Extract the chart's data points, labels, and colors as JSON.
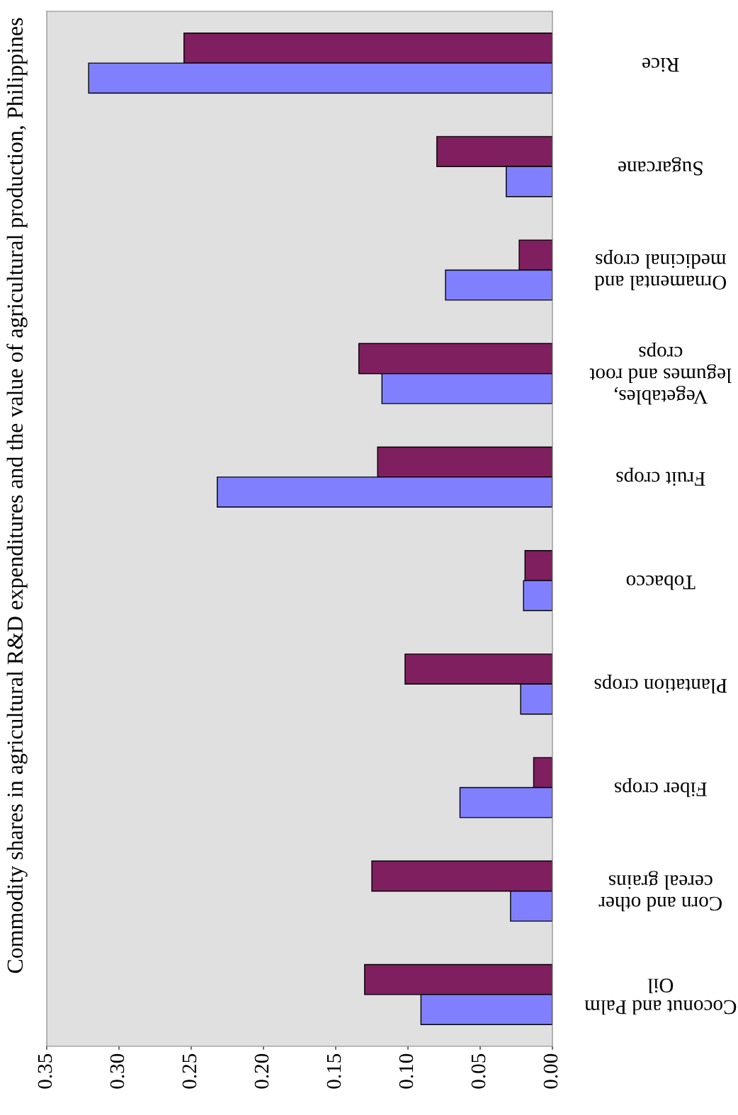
{
  "chart_data": {
    "type": "bar",
    "orientation": "horizontal",
    "title": "Commodity shares in agricultural R&D expenditures and the value of agricultural production, Philippines",
    "categories": [
      "Rice",
      "Sugarcane",
      "Ornamental and medicinal crops",
      "Vegetables, legumes and root crops",
      "Fruit crops",
      "Tobacco",
      "Plantation crops",
      "Fiber crops",
      "Corn and other cereal grains",
      "Coconut and Palm Oil"
    ],
    "series": [
      {
        "color": "#7f1f5f",
        "values": [
          0.255,
          0.08,
          0.023,
          0.134,
          0.121,
          0.019,
          0.102,
          0.013,
          0.125,
          0.13
        ]
      },
      {
        "color": "#8080ff",
        "values": [
          0.321,
          0.032,
          0.074,
          0.118,
          0.232,
          0.02,
          0.022,
          0.064,
          0.029,
          0.091
        ]
      }
    ],
    "xlim": [
      0.35,
      0
    ],
    "xticks": [
      {
        "value": 0.35,
        "label": "0.35"
      },
      {
        "value": 0.3,
        "label": "0.30"
      },
      {
        "value": 0.25,
        "label": "0.25"
      },
      {
        "value": 0.2,
        "label": "0.20"
      },
      {
        "value": 0.15,
        "label": "0.15"
      },
      {
        "value": 0.1,
        "label": "0.10"
      },
      {
        "value": 0.05,
        "label": "0.05"
      },
      {
        "value": 0,
        "label": "0.00"
      }
    ],
    "grid": false,
    "legend": false
  }
}
